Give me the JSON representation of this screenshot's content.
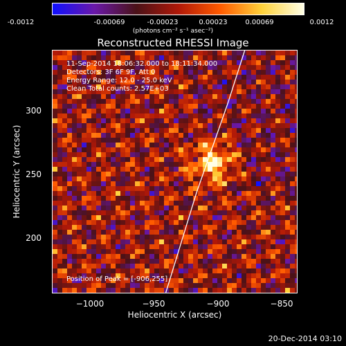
{
  "colorbar": {
    "ticks": [
      "-0.0012",
      "-0.00069",
      "-0.00023",
      "0.00023",
      "0.00069",
      "0.0012"
    ],
    "unit": "(photons cm⁻² s⁻¹ asec⁻²)",
    "colors": [
      "#1010ff",
      "#6a18a8",
      "#4a1218",
      "#b01808",
      "#ff5a00",
      "#ffd23a",
      "#ffffe6"
    ]
  },
  "title": "Reconstructed RHESSI Image",
  "info_lines": [
    "11-Sep-2014 18:06:32.000 to 18:11:34.000",
    "Detectors: 3F 6F 9F, Att 0",
    "Energy Range: 12.0 - 25.0 keV",
    "Clean     Total counts: 2.57E+03"
  ],
  "peak_text": "Position of Peak = [-906,255]",
  "xaxis": {
    "label": "Heliocentric X (arcsec)",
    "ticks": [
      "−1000",
      "−950",
      "−900",
      "−850"
    ]
  },
  "yaxis": {
    "label": "Heliocentric Y (arcsec)",
    "ticks": [
      "300",
      "250",
      "200"
    ]
  },
  "footer": "20-Dec-2014 03:10",
  "chart_data": {
    "type": "heatmap",
    "title": "Reconstructed RHESSI Image",
    "xlabel": "Heliocentric X (arcsec)",
    "ylabel": "Heliocentric Y (arcsec)",
    "xlim": [
      -1030,
      -838
    ],
    "ylim": [
      153,
      340
    ],
    "color_range": [
      -0.0012,
      0.0012
    ],
    "peak": {
      "x": -906,
      "y": 255
    },
    "limb": [
      [
        -941,
        153
      ],
      [
        -917,
        230
      ],
      [
        -892,
        300
      ],
      [
        -879,
        340
      ]
    ]
  }
}
